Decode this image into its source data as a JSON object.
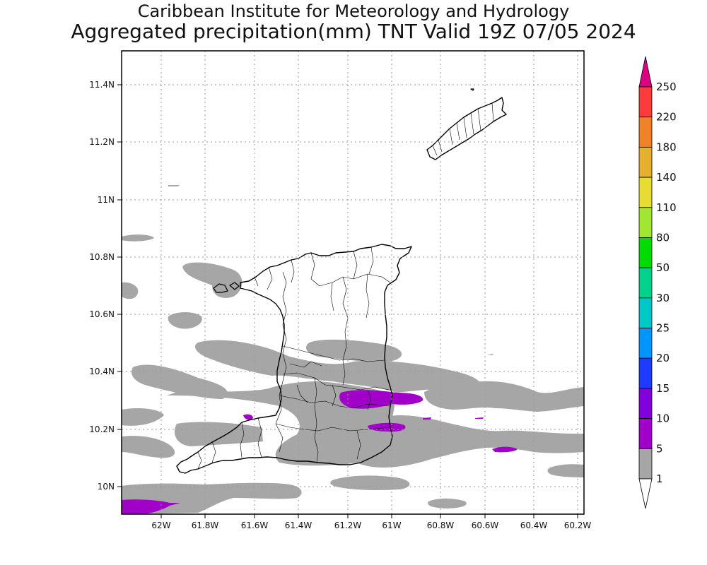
{
  "titles": {
    "line1": "Caribbean Institute for Meteorology and Hydrology",
    "line2": "Aggregated precipitation(mm) TNT Valid 19Z 07/05 2024"
  },
  "axes": {
    "lon_ticks": [
      "62W",
      "61.8W",
      "61.6W",
      "61.4W",
      "61.2W",
      "61W",
      "60.8W",
      "60.6W",
      "60.4W",
      "60.2W"
    ],
    "lat_ticks": [
      "11.4N",
      "11.2N",
      "11N",
      "10.8N",
      "10.6N",
      "10.4N",
      "10.2N",
      "10N"
    ]
  },
  "legend": {
    "labels": [
      "1",
      "5",
      "10",
      "15",
      "20",
      "25",
      "30",
      "50",
      "80",
      "110",
      "140",
      "180",
      "220",
      "250"
    ],
    "colors": [
      "#ffffff",
      "#a6a6a6",
      "#a000c8",
      "#8200dc",
      "#1e3cff",
      "#0096ff",
      "#00c8c8",
      "#00d28c",
      "#00dc00",
      "#a0e632",
      "#e6dc32",
      "#e6af2d",
      "#f08228",
      "#fa3c3c",
      "#dc0082"
    ]
  },
  "colors": {
    "light_rain": "#a6a6a6",
    "moderate_rain": "#a000c8",
    "coastline": "#000000"
  }
}
